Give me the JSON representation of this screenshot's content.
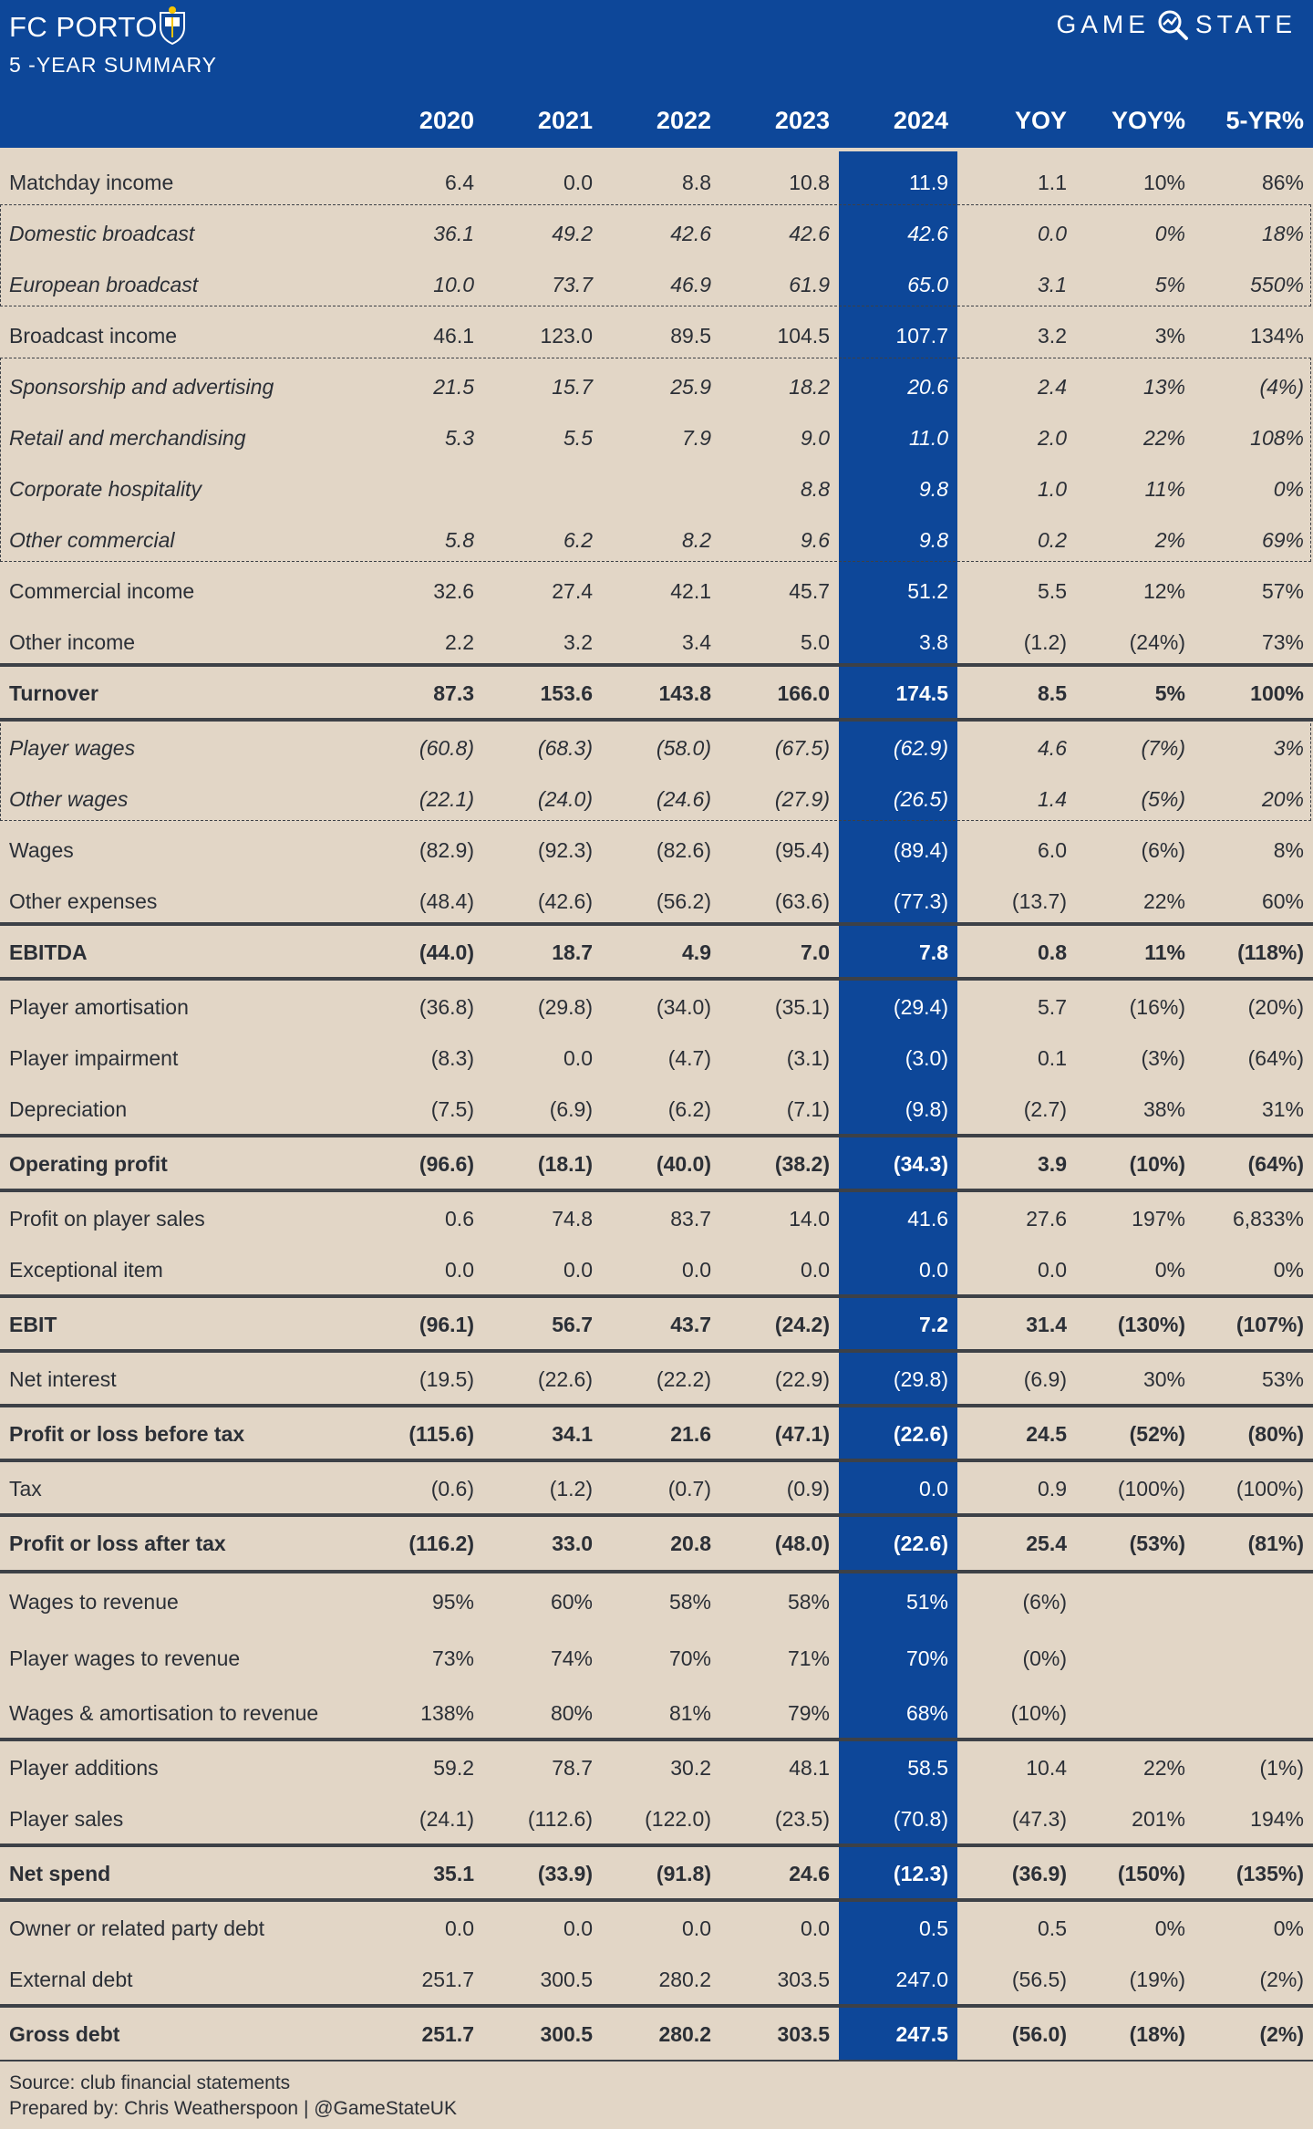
{
  "header": {
    "club": "FC PORTO",
    "subtitle": "5 -YEAR SUMMARY",
    "brand_left": "GAME",
    "brand_right": "STATE",
    "columns": [
      "2020",
      "2021",
      "2022",
      "2023",
      "2024",
      "YOY",
      "YOY%",
      "5-YR%"
    ]
  },
  "colors": {
    "header_bg": "#0d4799",
    "page_bg": "#e2d6c6",
    "text": "#2b2f36"
  },
  "rows": [
    {
      "label": "Matchday income",
      "values": [
        "6.4",
        "0.0",
        "8.8",
        "10.8",
        "11.9",
        "1.1",
        "10%",
        "86%"
      ]
    },
    {
      "label": "Domestic broadcast",
      "values": [
        "36.1",
        "49.2",
        "42.6",
        "42.6",
        "42.6",
        "0.0",
        "0%",
        "18%"
      ]
    },
    {
      "label": "European broadcast",
      "values": [
        "10.0",
        "73.7",
        "46.9",
        "61.9",
        "65.0",
        "3.1",
        "5%",
        "550%"
      ]
    },
    {
      "label": "Broadcast income",
      "values": [
        "46.1",
        "123.0",
        "89.5",
        "104.5",
        "107.7",
        "3.2",
        "3%",
        "134%"
      ]
    },
    {
      "label": "Sponsorship and advertising",
      "values": [
        "21.5",
        "15.7",
        "25.9",
        "18.2",
        "20.6",
        "2.4",
        "13%",
        "(4%)"
      ]
    },
    {
      "label": "Retail and merchandising",
      "values": [
        "5.3",
        "5.5",
        "7.9",
        "9.0",
        "11.0",
        "2.0",
        "22%",
        "108%"
      ]
    },
    {
      "label": "Corporate hospitality",
      "values": [
        "",
        "",
        "",
        "8.8",
        "9.8",
        "1.0",
        "11%",
        "0%"
      ]
    },
    {
      "label": "Other commercial",
      "values": [
        "5.8",
        "6.2",
        "8.2",
        "9.6",
        "9.8",
        "0.2",
        "2%",
        "69%"
      ]
    },
    {
      "label": "Commercial income",
      "values": [
        "32.6",
        "27.4",
        "42.1",
        "45.7",
        "51.2",
        "5.5",
        "12%",
        "57%"
      ]
    },
    {
      "label": "Other income",
      "values": [
        "2.2",
        "3.2",
        "3.4",
        "5.0",
        "3.8",
        "(1.2)",
        "(24%)",
        "73%"
      ]
    },
    {
      "label": "Turnover",
      "values": [
        "87.3",
        "153.6",
        "143.8",
        "166.0",
        "174.5",
        "8.5",
        "5%",
        "100%"
      ]
    },
    {
      "label": "Player wages",
      "values": [
        "(60.8)",
        "(68.3)",
        "(58.0)",
        "(67.5)",
        "(62.9)",
        "4.6",
        "(7%)",
        "3%"
      ]
    },
    {
      "label": "Other wages",
      "values": [
        "(22.1)",
        "(24.0)",
        "(24.6)",
        "(27.9)",
        "(26.5)",
        "1.4",
        "(5%)",
        "20%"
      ]
    },
    {
      "label": "Wages",
      "values": [
        "(82.9)",
        "(92.3)",
        "(82.6)",
        "(95.4)",
        "(89.4)",
        "6.0",
        "(6%)",
        "8%"
      ]
    },
    {
      "label": "Other expenses",
      "values": [
        "(48.4)",
        "(42.6)",
        "(56.2)",
        "(63.6)",
        "(77.3)",
        "(13.7)",
        "22%",
        "60%"
      ]
    },
    {
      "label": "EBITDA",
      "values": [
        "(44.0)",
        "18.7",
        "4.9",
        "7.0",
        "7.8",
        "0.8",
        "11%",
        "(118%)"
      ]
    },
    {
      "label": "Player amortisation",
      "values": [
        "(36.8)",
        "(29.8)",
        "(34.0)",
        "(35.1)",
        "(29.4)",
        "5.7",
        "(16%)",
        "(20%)"
      ]
    },
    {
      "label": "Player impairment",
      "values": [
        "(8.3)",
        "0.0",
        "(4.7)",
        "(3.1)",
        "(3.0)",
        "0.1",
        "(3%)",
        "(64%)"
      ]
    },
    {
      "label": "Depreciation",
      "values": [
        "(7.5)",
        "(6.9)",
        "(6.2)",
        "(7.1)",
        "(9.8)",
        "(2.7)",
        "38%",
        "31%"
      ]
    },
    {
      "label": "Operating profit",
      "values": [
        "(96.6)",
        "(18.1)",
        "(40.0)",
        "(38.2)",
        "(34.3)",
        "3.9",
        "(10%)",
        "(64%)"
      ]
    },
    {
      "label": "Profit on player sales",
      "values": [
        "0.6",
        "74.8",
        "83.7",
        "14.0",
        "41.6",
        "27.6",
        "197%",
        "6,833%"
      ]
    },
    {
      "label": "Exceptional item",
      "values": [
        "0.0",
        "0.0",
        "0.0",
        "0.0",
        "0.0",
        "0.0",
        "0%",
        "0%"
      ]
    },
    {
      "label": "EBIT",
      "values": [
        "(96.1)",
        "56.7",
        "43.7",
        "(24.2)",
        "7.2",
        "31.4",
        "(130%)",
        "(107%)"
      ]
    },
    {
      "label": "Net interest",
      "values": [
        "(19.5)",
        "(22.6)",
        "(22.2)",
        "(22.9)",
        "(29.8)",
        "(6.9)",
        "30%",
        "53%"
      ]
    },
    {
      "label": "Profit or loss before tax",
      "values": [
        "(115.6)",
        "34.1",
        "21.6",
        "(47.1)",
        "(22.6)",
        "24.5",
        "(52%)",
        "(80%)"
      ]
    },
    {
      "label": "Tax",
      "values": [
        "(0.6)",
        "(1.2)",
        "(0.7)",
        "(0.9)",
        "0.0",
        "0.9",
        "(100%)",
        "(100%)"
      ]
    },
    {
      "label": "Profit or loss after tax",
      "values": [
        "(116.2)",
        "33.0",
        "20.8",
        "(48.0)",
        "(22.6)",
        "25.4",
        "(53%)",
        "(81%)"
      ]
    },
    {
      "label": "Wages to revenue",
      "values": [
        "95%",
        "60%",
        "58%",
        "58%",
        "51%",
        "(6%)",
        "",
        ""
      ]
    },
    {
      "label": "Player wages to revenue",
      "values": [
        "73%",
        "74%",
        "70%",
        "71%",
        "70%",
        "(0%)",
        "",
        ""
      ]
    },
    {
      "label": "Wages & amortisation to revenue",
      "values": [
        "138%",
        "80%",
        "81%",
        "79%",
        "68%",
        "(10%)",
        "",
        ""
      ]
    },
    {
      "label": "Player additions",
      "values": [
        "59.2",
        "78.7",
        "30.2",
        "48.1",
        "58.5",
        "10.4",
        "22%",
        "(1%)"
      ]
    },
    {
      "label": "Player sales",
      "values": [
        "(24.1)",
        "(112.6)",
        "(122.0)",
        "(23.5)",
        "(70.8)",
        "(47.3)",
        "201%",
        "194%"
      ]
    },
    {
      "label": "Net spend",
      "values": [
        "35.1",
        "(33.9)",
        "(91.8)",
        "24.6",
        "(12.3)",
        "(36.9)",
        "(150%)",
        "(135%)"
      ]
    },
    {
      "label": "Owner or related party debt",
      "values": [
        "0.0",
        "0.0",
        "0.0",
        "0.0",
        "0.5",
        "0.5",
        "0%",
        "0%"
      ]
    },
    {
      "label": "External debt",
      "values": [
        "251.7",
        "300.5",
        "280.2",
        "303.5",
        "247.0",
        "(56.5)",
        "(19%)",
        "(2%)"
      ]
    },
    {
      "label": "Gross debt",
      "values": [
        "251.7",
        "300.5",
        "280.2",
        "303.5",
        "247.5",
        "(56.0)",
        "(18%)",
        "(2%)"
      ]
    }
  ],
  "footer": {
    "source": "Source: club financial statements",
    "prepared": "Prepared by: Chris Weatherspoon | @GameStateUK"
  }
}
